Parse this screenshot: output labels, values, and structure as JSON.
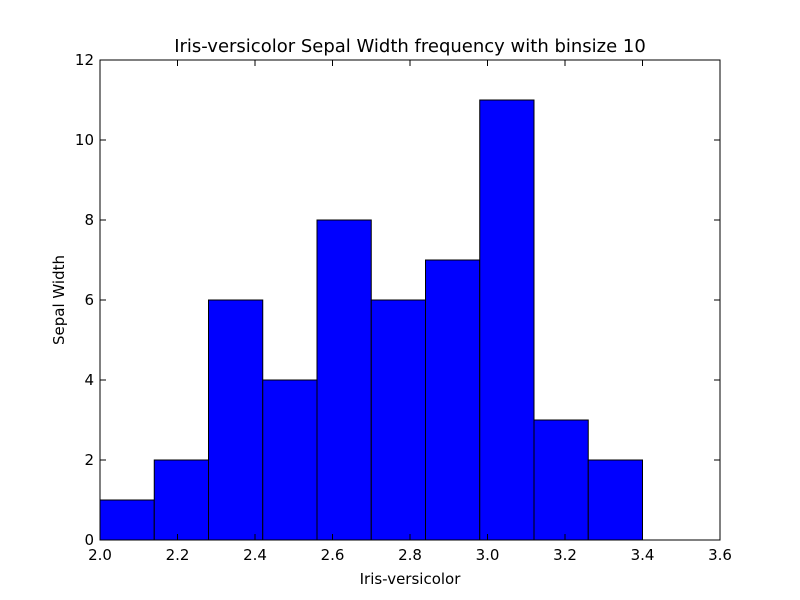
{
  "chart_data": {
    "type": "bar",
    "title": "Iris-versicolor Sepal Width frequency with binsize 10",
    "xlabel": "Iris-versicolor",
    "ylabel": "Sepal Width",
    "xlim": [
      2.0,
      3.6
    ],
    "ylim": [
      0,
      12
    ],
    "xticks": [
      "2.0",
      "2.2",
      "2.4",
      "2.6",
      "2.8",
      "3.0",
      "3.2",
      "3.4",
      "3.6"
    ],
    "yticks": [
      "0",
      "2",
      "4",
      "6",
      "8",
      "10",
      "12"
    ],
    "bins": [
      {
        "start": 2.0,
        "end": 2.14,
        "count": 1
      },
      {
        "start": 2.14,
        "end": 2.28,
        "count": 2
      },
      {
        "start": 2.28,
        "end": 2.42,
        "count": 6
      },
      {
        "start": 2.42,
        "end": 2.56,
        "count": 4
      },
      {
        "start": 2.56,
        "end": 2.7,
        "count": 8
      },
      {
        "start": 2.7,
        "end": 2.84,
        "count": 6
      },
      {
        "start": 2.84,
        "end": 2.98,
        "count": 7
      },
      {
        "start": 2.98,
        "end": 3.12,
        "count": 11
      },
      {
        "start": 3.12,
        "end": 3.26,
        "count": 3
      },
      {
        "start": 3.26,
        "end": 3.4,
        "count": 2
      }
    ],
    "bar_color": "#0000ff",
    "edge_color": "#000000",
    "grid": false,
    "legend": "none"
  }
}
